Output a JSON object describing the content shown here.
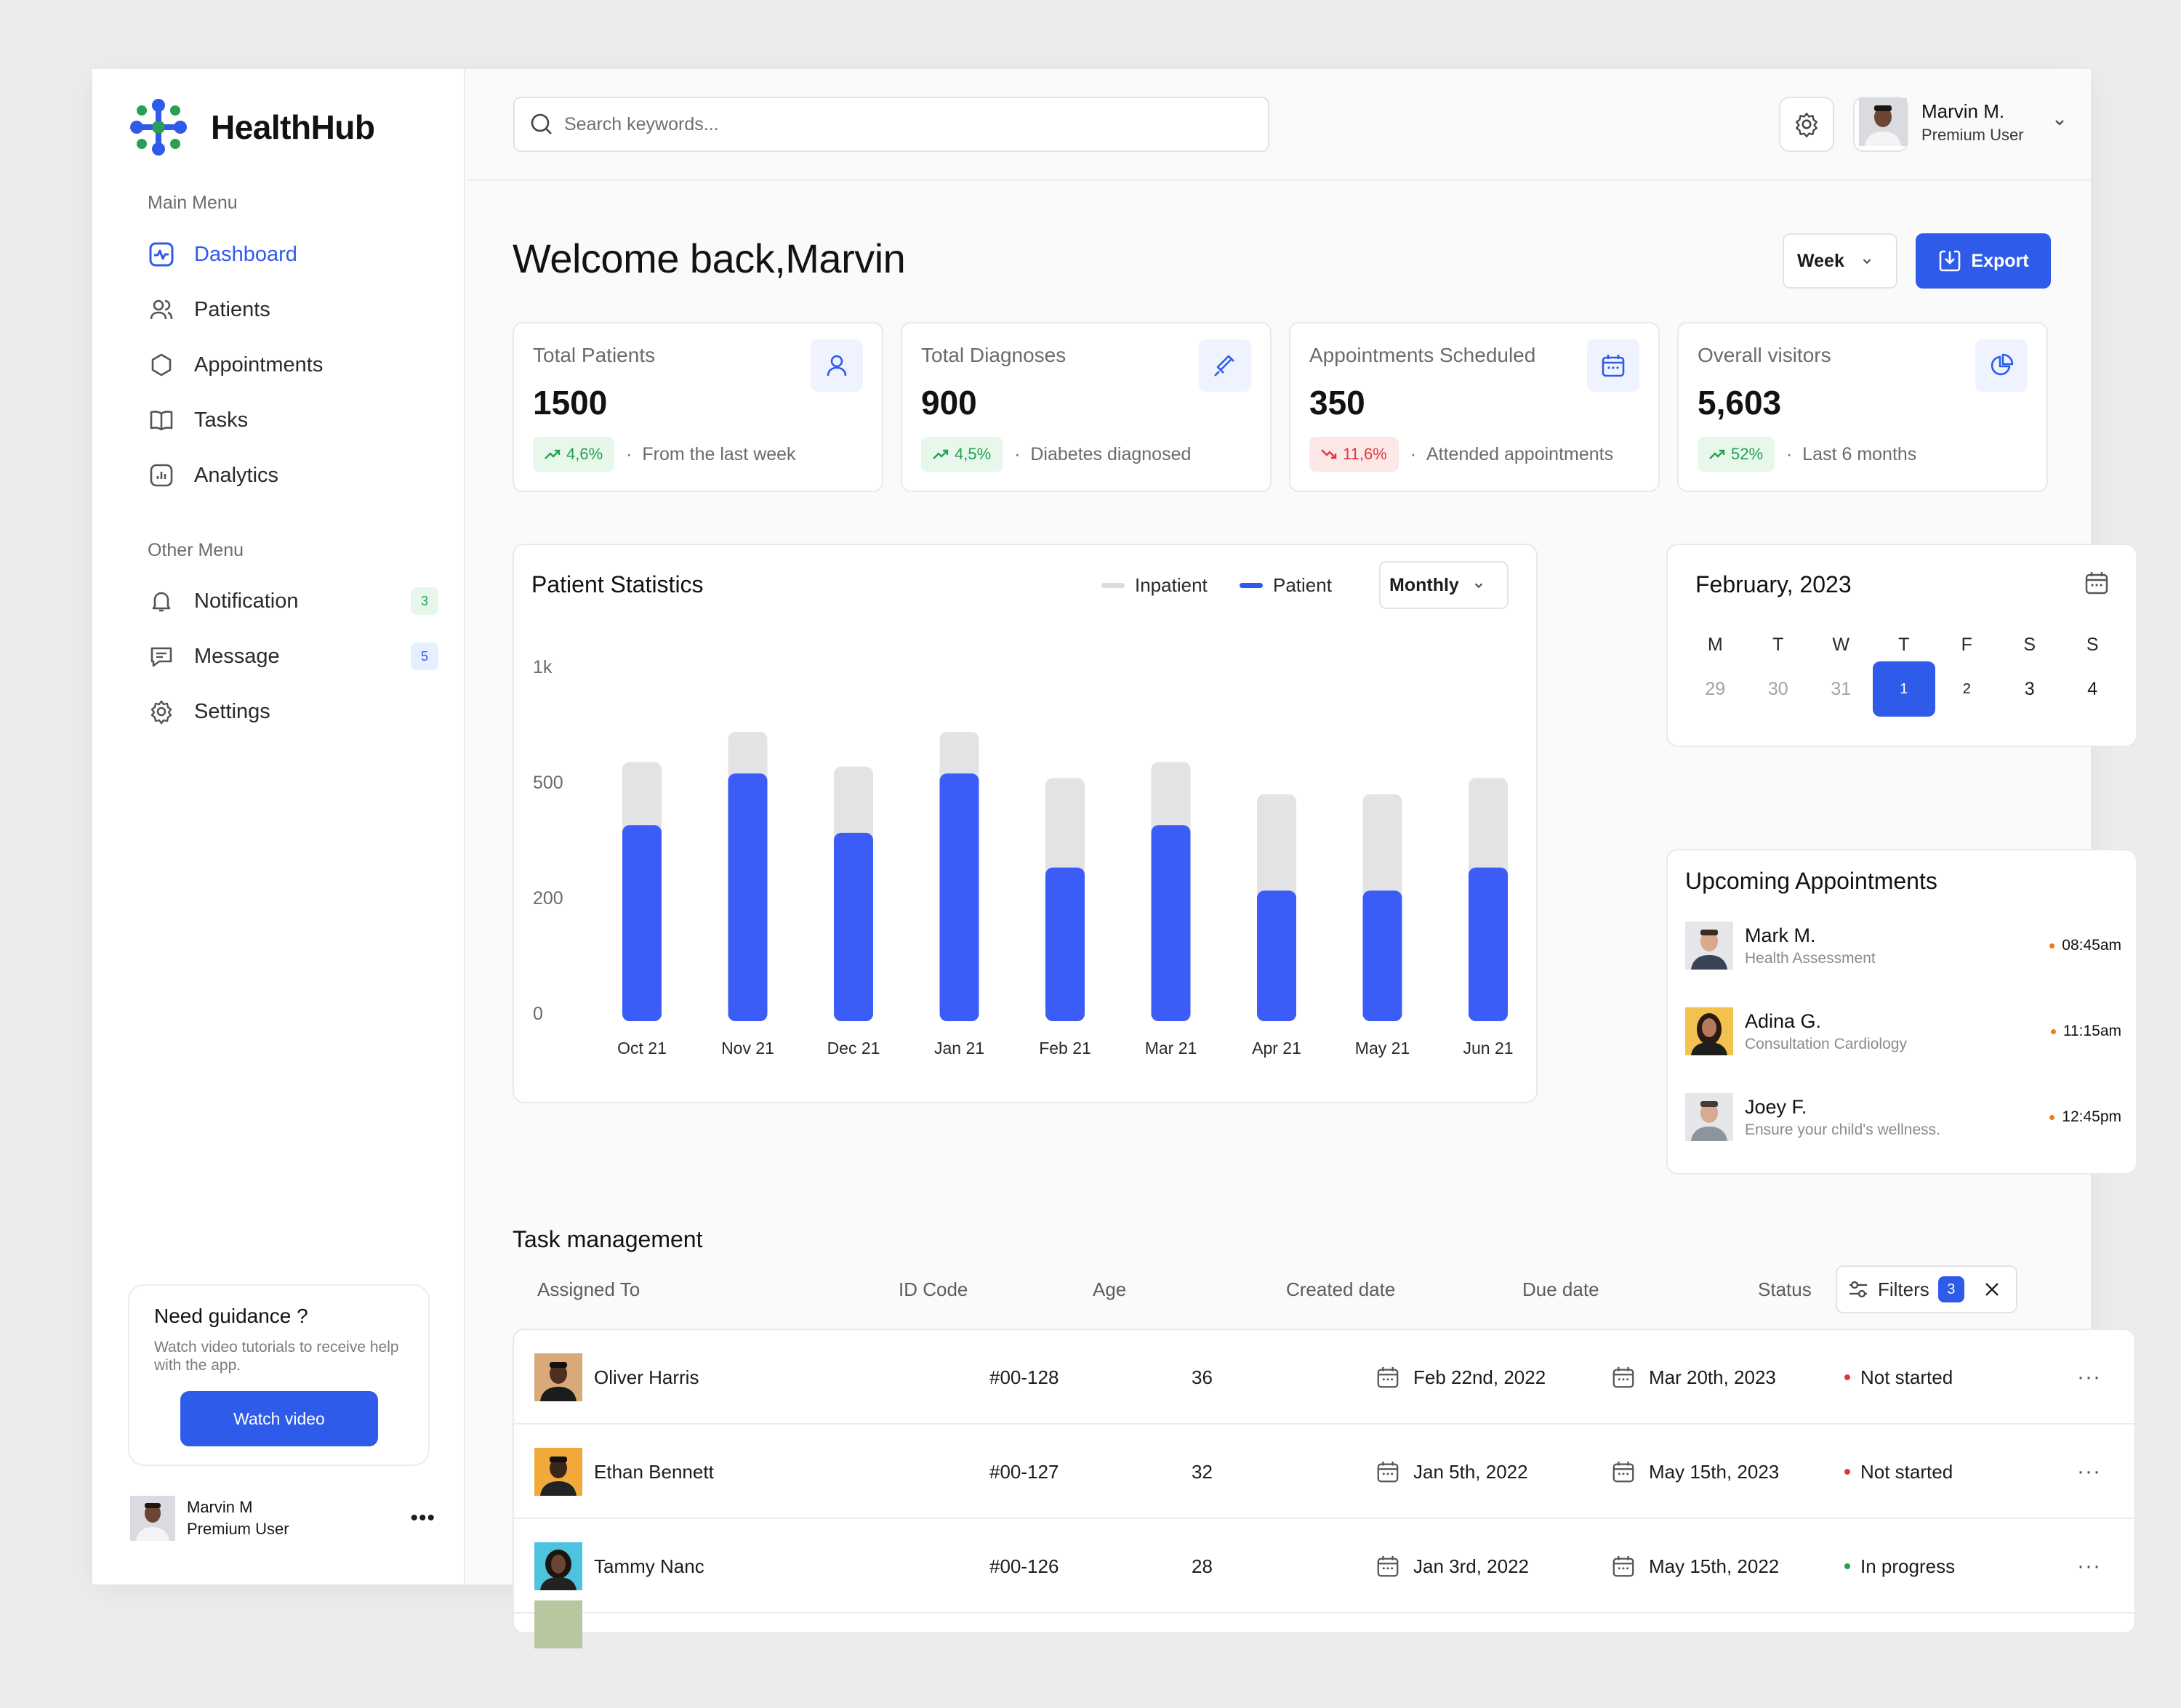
{
  "app": {
    "name": "HealthHub"
  },
  "sidebar": {
    "main_menu_title": "Main Menu",
    "main_items": [
      {
        "label": "Dashboard",
        "icon": "dashboard-icon",
        "active": true
      },
      {
        "label": "Patients",
        "icon": "users-icon"
      },
      {
        "label": "Appointments",
        "icon": "hexagon-icon"
      },
      {
        "label": "Tasks",
        "icon": "book-icon"
      },
      {
        "label": "Analytics",
        "icon": "analytics-icon"
      }
    ],
    "other_menu_title": "Other Menu",
    "other_items": [
      {
        "label": "Notification",
        "icon": "bell-icon",
        "count": "3"
      },
      {
        "label": "Message",
        "icon": "message-icon",
        "count": "5"
      },
      {
        "label": "Settings",
        "icon": "gear-icon"
      }
    ],
    "guide": {
      "title": "Need guidance ?",
      "text": "Watch video tutorials to receive help with the app.",
      "button": "Watch video"
    },
    "user": {
      "name": "Marvin M",
      "role": "Premium User"
    }
  },
  "header": {
    "search_placeholder": "Search keywords...",
    "user": {
      "name": "Marvin M.",
      "role": "Premium User"
    }
  },
  "main": {
    "welcome": "Welcome back,Marvin",
    "period": "Week",
    "export_label": "Export"
  },
  "stats": [
    {
      "label": "Total Patients",
      "value": "1500",
      "change": "4,6%",
      "direction": "up",
      "note": "From the last week",
      "icon": "user-icon"
    },
    {
      "label": "Total Diagnoses",
      "value": "900",
      "change": "4,5%",
      "direction": "up",
      "note": "Diabetes diagnosed",
      "icon": "syringe-icon"
    },
    {
      "label": "Appointments Scheduled",
      "value": "350",
      "change": "11,6%",
      "direction": "down",
      "note": "Attended appointments",
      "icon": "calendar-icon"
    },
    {
      "label": "Overall visitors",
      "value": "5,603",
      "change": "52%",
      "direction": "up",
      "note": "Last 6 months",
      "icon": "pie-chart-icon"
    }
  ],
  "patient_stats": {
    "title": "Patient Statistics",
    "range": "Monthly",
    "legend": [
      "Inpatient",
      "Patient"
    ]
  },
  "chart_data": {
    "type": "bar",
    "title": "Patient Statistics",
    "categories": [
      "Oct 21",
      "Nov 21",
      "Dec 21",
      "Jan 21",
      "Feb 21",
      "Mar 21",
      "Apr 21",
      "May 21",
      "Jun 21"
    ],
    "y_ticks": [
      "1k",
      "500",
      "200",
      "0"
    ],
    "series": [
      {
        "name": "Patient",
        "color": "#3b5cf6",
        "values": [
          390,
          540,
          370,
          540,
          280,
          390,
          220,
          220,
          280
        ]
      },
      {
        "name": "Inpatient",
        "color": "#e3e3e6",
        "values": [
          590,
          720,
          570,
          720,
          520,
          590,
          470,
          470,
          520
        ]
      }
    ]
  },
  "calendar": {
    "title": "February, 2023",
    "day_names": [
      "M",
      "T",
      "W",
      "T",
      "F",
      "S",
      "S"
    ],
    "days": [
      {
        "d": "29",
        "muted": true
      },
      {
        "d": "30",
        "muted": true
      },
      {
        "d": "31",
        "muted": true
      },
      {
        "d": "1",
        "selected": true
      },
      {
        "d": "2"
      },
      {
        "d": "3"
      },
      {
        "d": "4"
      }
    ]
  },
  "appointments": {
    "title": "Upcoming Appointments",
    "items": [
      {
        "name": "Mark M.",
        "desc": "Health Assessment",
        "time": "08:45am"
      },
      {
        "name": "Adina G.",
        "desc": "Consultation Cardiology",
        "time": "11:15am"
      },
      {
        "name": "Joey F.",
        "desc": "Ensure your child's wellness.",
        "time": "12:45pm"
      }
    ]
  },
  "tasks": {
    "title": "Task management",
    "columns": [
      "Assigned To",
      "ID Code",
      "Age",
      "Created date",
      "Due date",
      "Status"
    ],
    "filters_label": "Filters",
    "filters_count": "3",
    "rows": [
      {
        "name": "Oliver Harris",
        "id": "#00-128",
        "age": "36",
        "created": "Feb 22nd, 2022",
        "due": "Mar 20th, 2023",
        "status": "Not started",
        "status_color": "#e0383e"
      },
      {
        "name": "Ethan Bennett",
        "id": "#00-127",
        "age": "32",
        "created": "Jan 5th, 2022",
        "due": "May 15th, 2023",
        "status": "Not started",
        "status_color": "#e0383e"
      },
      {
        "name": "Tammy Nanc",
        "id": "#00-126",
        "age": "28",
        "created": "Jan 3rd, 2022",
        "due": "May 15th, 2022",
        "status": "In progress",
        "status_color": "#27a052"
      }
    ]
  }
}
